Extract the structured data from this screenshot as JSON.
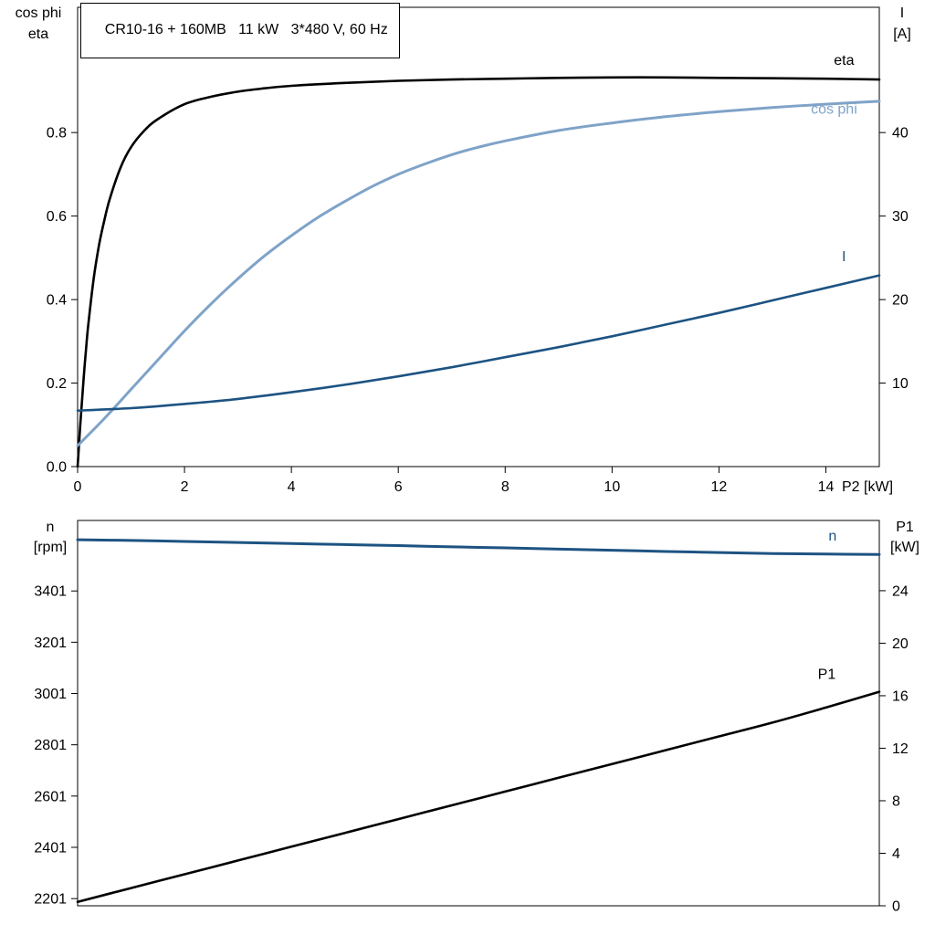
{
  "title": "CR10-16 + 160MB   11 kW   3*480 V, 60 Hz",
  "chart_data": [
    {
      "type": "line",
      "name": "motor-performance",
      "x_axis": {
        "label": "P2 [kW]",
        "range": [
          0,
          15
        ],
        "ticks": [
          0,
          2,
          4,
          6,
          8,
          10,
          12,
          14
        ],
        "tick_labels": [
          "0",
          "2",
          "4",
          "6",
          "8",
          "10",
          "12",
          "14"
        ]
      },
      "y_left": {
        "label_lines": [
          "cos phi",
          "eta"
        ],
        "range": [
          0,
          1.1
        ],
        "ticks": [
          0.0,
          0.2,
          0.4,
          0.6,
          0.8
        ],
        "tick_labels": [
          "0.0",
          "0.2",
          "0.4",
          "0.6",
          "0.8"
        ]
      },
      "y_right": {
        "label_lines": [
          "I",
          "[A]"
        ],
        "range": [
          0,
          55
        ],
        "ticks": [
          10,
          20,
          30,
          40
        ],
        "tick_labels": [
          "10",
          "20",
          "30",
          "40"
        ]
      },
      "grid": false,
      "series": [
        {
          "name": "eta",
          "axis": "left",
          "color": "#000000",
          "width": 2.6,
          "label": {
            "text": "eta",
            "x": 14.15,
            "y": 0.962
          },
          "x": [
            0,
            0.05,
            0.1,
            0.15,
            0.2,
            0.3,
            0.4,
            0.5,
            0.6,
            0.8,
            1,
            1.25,
            1.5,
            2,
            2.5,
            3,
            3.5,
            4,
            5,
            6,
            7,
            8,
            9,
            10,
            11,
            12,
            13,
            14,
            15
          ],
          "v": [
            0,
            0.1,
            0.19,
            0.27,
            0.34,
            0.45,
            0.53,
            0.59,
            0.64,
            0.715,
            0.765,
            0.805,
            0.832,
            0.868,
            0.886,
            0.898,
            0.906,
            0.912,
            0.919,
            0.924,
            0.927,
            0.929,
            0.931,
            0.932,
            0.932,
            0.931,
            0.93,
            0.929,
            0.927
          ]
        },
        {
          "name": "cos phi",
          "axis": "left",
          "color": "#7FA3C8",
          "width": 3,
          "label": {
            "text": "cos phi",
            "x": 13.72,
            "y": 0.845
          },
          "x": [
            0,
            0.5,
            1,
            1.5,
            2,
            2.5,
            3,
            3.5,
            4,
            4.5,
            5,
            5.5,
            6,
            6.5,
            7,
            7.5,
            8,
            9,
            10,
            11,
            12,
            13,
            14,
            15
          ],
          "v": [
            0.05,
            0.115,
            0.185,
            0.255,
            0.325,
            0.39,
            0.45,
            0.505,
            0.553,
            0.597,
            0.635,
            0.67,
            0.7,
            0.725,
            0.747,
            0.765,
            0.78,
            0.805,
            0.823,
            0.838,
            0.85,
            0.86,
            0.868,
            0.875
          ]
        },
        {
          "name": "I",
          "axis": "right",
          "color": "#1D5382",
          "width": 2.6,
          "label": {
            "text": "I",
            "x": 14.3,
            "y": 24.6
          },
          "x": [
            0,
            1,
            2,
            3,
            4,
            5,
            6,
            7,
            8,
            9,
            10,
            11,
            12,
            13,
            14,
            15
          ],
          "v": [
            6.7,
            7.0,
            7.5,
            8.1,
            8.9,
            9.8,
            10.8,
            11.9,
            13.1,
            14.3,
            15.6,
            17.0,
            18.4,
            19.9,
            21.4,
            22.9
          ]
        }
      ]
    },
    {
      "type": "line",
      "name": "speed-and-input-power",
      "x_axis": {
        "label": "",
        "range": [
          0,
          15
        ],
        "ticks": [],
        "tick_labels": []
      },
      "y_left": {
        "label_lines": [
          "n",
          "[rpm]"
        ],
        "range": [
          2173,
          3676
        ],
        "ticks": [
          2201,
          2401,
          2601,
          2801,
          3001,
          3201,
          3401
        ],
        "tick_labels": [
          "2201",
          "2401",
          "2601",
          "2801",
          "3001",
          "3201",
          "3401"
        ]
      },
      "y_right": {
        "label_lines": [
          "P1",
          "[kW]"
        ],
        "range": [
          0,
          29.35
        ],
        "ticks": [
          0,
          4,
          8,
          12,
          16,
          20,
          24
        ],
        "tick_labels": [
          "0",
          "4",
          "8",
          "12",
          "16",
          "20",
          "24"
        ]
      },
      "grid": false,
      "series": [
        {
          "name": "n",
          "axis": "left",
          "color": "#1D5382",
          "width": 3,
          "label": {
            "text": "n",
            "x": 14.05,
            "y": 3597
          },
          "x": [
            0,
            1,
            2,
            3,
            4,
            5,
            6,
            7,
            8,
            9,
            10,
            11,
            12,
            13,
            14,
            15
          ],
          "v": [
            3601,
            3598,
            3594,
            3590,
            3586,
            3582,
            3578,
            3573,
            3569,
            3564,
            3560,
            3555,
            3551,
            3547,
            3545,
            3543
          ]
        },
        {
          "name": "P1",
          "axis": "right",
          "color": "#000000",
          "width": 2.6,
          "label": {
            "text": "P1",
            "x": 13.85,
            "y": 17.3
          },
          "x": [
            0,
            1,
            2,
            3,
            4,
            5,
            6,
            7,
            8,
            9,
            10,
            11,
            12,
            13,
            14,
            15
          ],
          "v": [
            0.3,
            1.35,
            2.4,
            3.45,
            4.5,
            5.55,
            6.6,
            7.65,
            8.7,
            9.75,
            10.8,
            11.85,
            12.9,
            13.95,
            15.1,
            16.3
          ]
        }
      ]
    }
  ]
}
